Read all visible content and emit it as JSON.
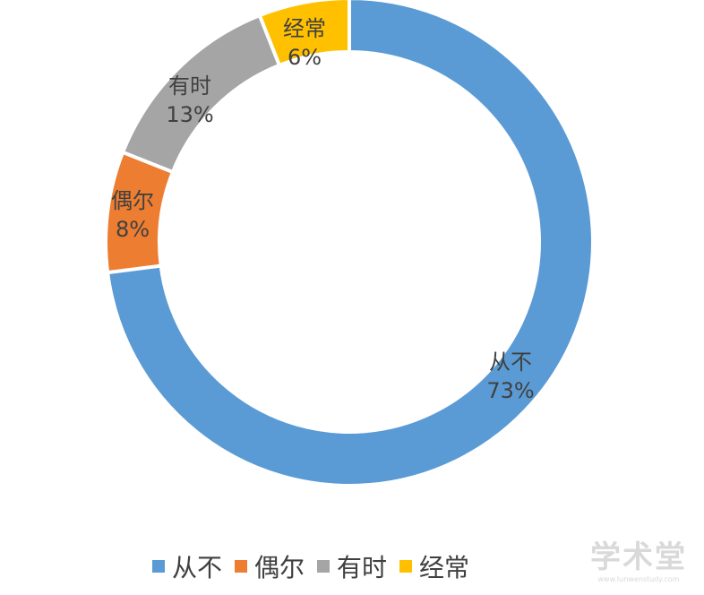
{
  "chart_data": {
    "type": "doughnut",
    "slices": [
      {
        "name": "从不",
        "value": 73,
        "label": "73%",
        "color": "#5b9bd5"
      },
      {
        "name": "偶尔",
        "value": 8,
        "label": "8%",
        "color": "#ed7d31"
      },
      {
        "name": "有时",
        "value": 13,
        "label": "13%",
        "color": "#a5a5a5"
      },
      {
        "name": "经常",
        "value": 6,
        "label": "6%",
        "color": "#ffc000"
      }
    ],
    "legend_position": "bottom",
    "start": "top, clockwise"
  },
  "watermark": {
    "text": "学术堂",
    "subtext": "www.lunwenstudy.com"
  }
}
